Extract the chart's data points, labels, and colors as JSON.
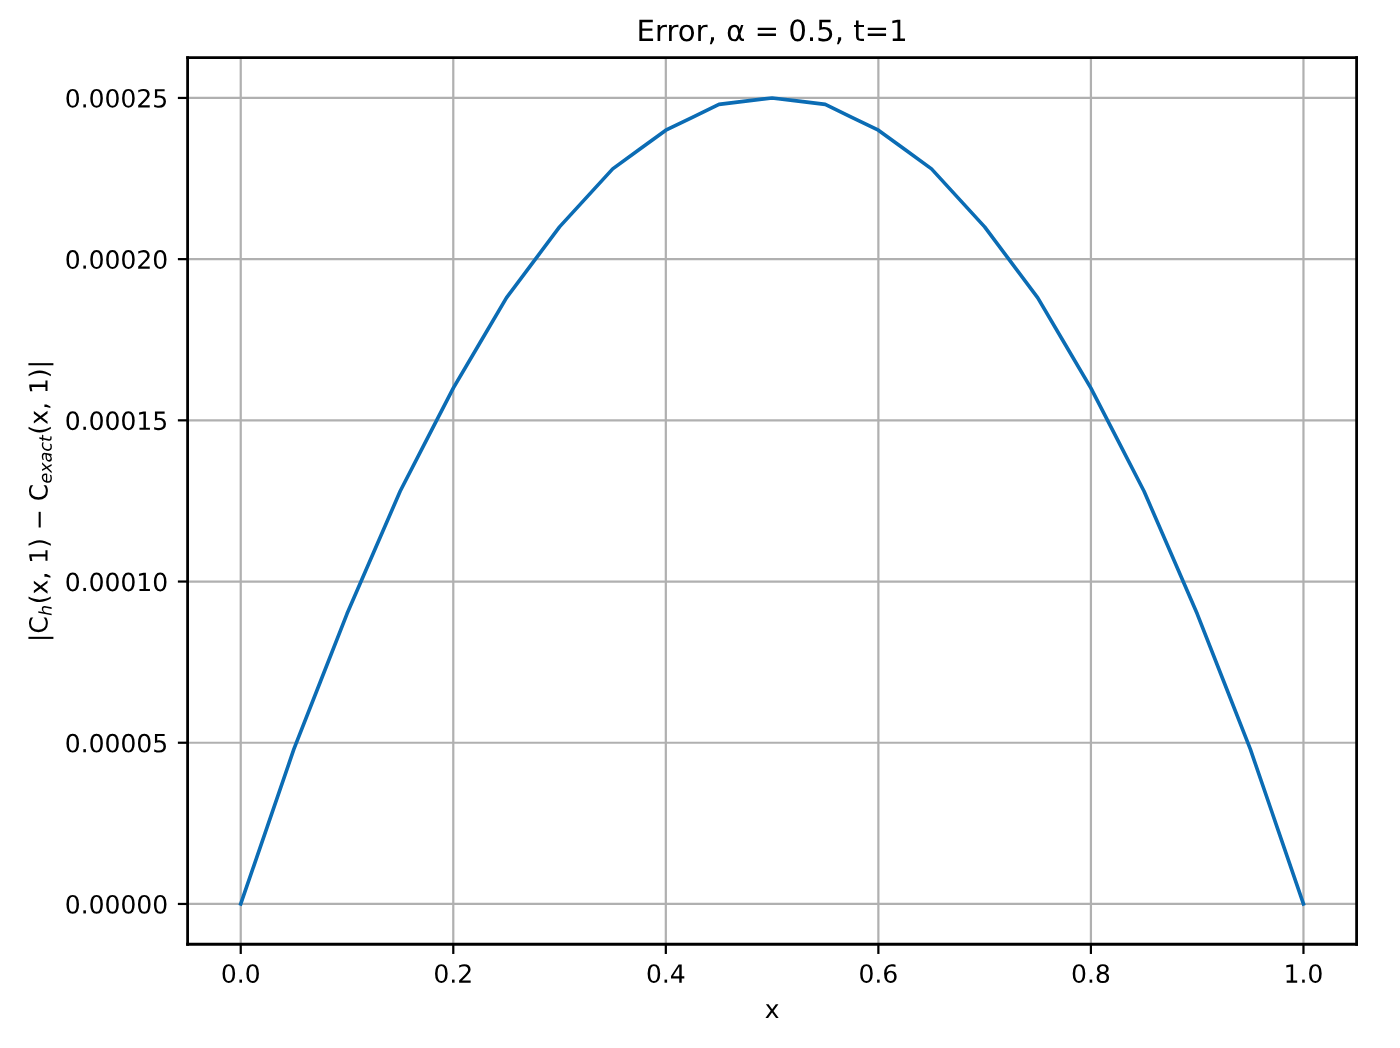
{
  "chart_data": {
    "type": "line",
    "title": "Error, α = 0.5, t=1",
    "xlabel": "x",
    "ylabel": "|C$_{h}$(x, 1) − C$_{exact}$(x, 1)|",
    "x": [
      0,
      0.025,
      0.05,
      0.075,
      0.1,
      0.125,
      0.15,
      0.175,
      0.2,
      0.225,
      0.25,
      0.275,
      0.3,
      0.325,
      0.35,
      0.375,
      0.4,
      0.425,
      0.45,
      0.475,
      0.5,
      0.525,
      0.55,
      0.575,
      0.6,
      0.625,
      0.65,
      0.675,
      0.7,
      0.725,
      0.75,
      0.775,
      0.8,
      0.825,
      0.85,
      0.875,
      0.9,
      0.925,
      0.95,
      0.975,
      1.0
    ],
    "series": [
      {
        "color": "#0b6cb4",
        "values": [
          0,
          2.4e-05,
          4.8e-05,
          6.9e-05,
          9e-05,
          0.000109,
          0.000128,
          0.000144,
          0.00016,
          0.000174,
          0.000188,
          0.000199,
          0.00021,
          0.000219,
          0.000228,
          0.000234,
          0.00024,
          0.000244,
          0.000248,
          0.000249,
          0.00025,
          0.000249,
          0.000248,
          0.000244,
          0.00024,
          0.000234,
          0.000228,
          0.000219,
          0.00021,
          0.000199,
          0.000188,
          0.000174,
          0.00016,
          0.000144,
          0.000128,
          0.000109,
          9e-05,
          6.9e-05,
          4.8e-05,
          2.4e-05,
          0
        ]
      }
    ],
    "xlim": [
      -0.05,
      1.05
    ],
    "ylim": [
      -1.25e-05,
      0.0002625
    ],
    "xticks": [
      {
        "value": 0,
        "label": "0.0"
      },
      {
        "value": 0.2,
        "label": "0.2"
      },
      {
        "value": 0.4,
        "label": "0.4"
      },
      {
        "value": 0.6,
        "label": "0.6"
      },
      {
        "value": 0.8,
        "label": "0.8"
      },
      {
        "value": 1.0,
        "label": "1.0"
      }
    ],
    "yticks": [
      {
        "value": 0,
        "label": "0.00000"
      },
      {
        "value": 5e-05,
        "label": "0.00005"
      },
      {
        "value": 0.0001,
        "label": "0.00010"
      },
      {
        "value": 0.00015,
        "label": "0.00015"
      },
      {
        "value": 0.0002,
        "label": "0.00020"
      },
      {
        "value": 0.00025,
        "label": "0.00025"
      }
    ],
    "grid": true,
    "marker": "none",
    "line_style": "solid"
  }
}
